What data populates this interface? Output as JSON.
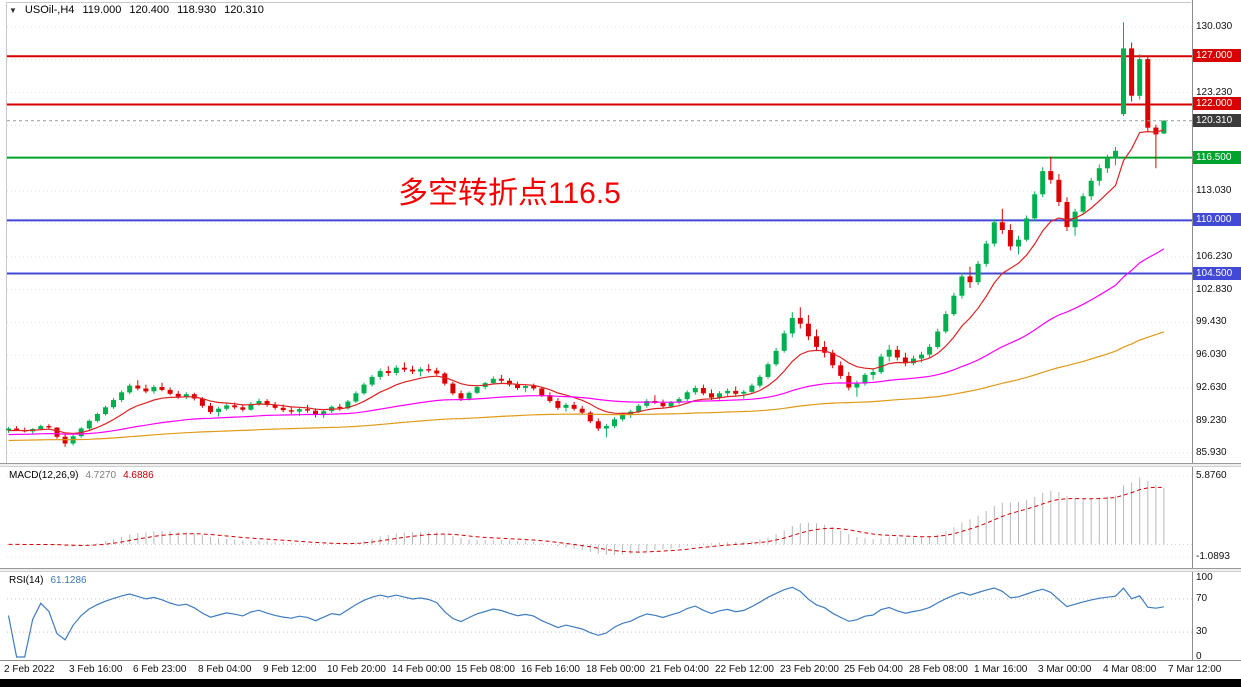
{
  "header": {
    "symbol": "USOil-,H4",
    "open": "119.000",
    "high": "120.400",
    "low": "118.930",
    "close": "120.310"
  },
  "icons": {
    "symbol_dropdown": "▼"
  },
  "annotation": {
    "text": "多空转折点116.5",
    "color": "#f40000"
  },
  "macd_header": {
    "label": "MACD(12,26,9)",
    "main_value": "4.7270",
    "signal_value": "4.6886"
  },
  "rsi_header": {
    "label": "RSI(14)",
    "value": "61.1286"
  },
  "chart_data": {
    "type": "candlestick",
    "symbol": "USOil-",
    "timeframe": "H4",
    "colors": {
      "up": "#00b050",
      "down": "#dd0000",
      "grid": "#e2e2e2",
      "rsi_line": "#3f7cbf",
      "macd_hist": "#b9b9b9",
      "macd_signal": "#d40000"
    },
    "price_axis": {
      "grid_prices": [
        130.03,
        126.63,
        123.23,
        119.83,
        116.43,
        113.03,
        109.63,
        106.23,
        102.83,
        99.43,
        96.03,
        92.63,
        89.23,
        85.93
      ],
      "label_decimals": 3
    },
    "levels": [
      {
        "price": 127.0,
        "label": "127.000",
        "color": "#d80000"
      },
      {
        "price": 122.0,
        "label": "122.000",
        "color": "#d80000"
      },
      {
        "price": 116.5,
        "label": "116.500",
        "color": "#00a32e"
      },
      {
        "price": 110.0,
        "label": "110.000",
        "color": "#4149d6"
      },
      {
        "price": 104.5,
        "label": "104.500",
        "color": "#4149d6"
      }
    ],
    "current_price": {
      "value": 120.31,
      "label": "120.310",
      "badge_bg": "#3b3b3b"
    },
    "ma_overlays": [
      {
        "period": 10,
        "color": "#dd2222",
        "seed": 88.2
      },
      {
        "period": 55,
        "color": "#ff00ff",
        "seed": 87.8
      },
      {
        "period": 150,
        "color": "#e09a18",
        "seed": 87.2
      }
    ],
    "candles": [
      [
        88.25,
        88.6,
        88.0,
        88.45
      ],
      [
        88.45,
        88.7,
        88.2,
        88.3
      ],
      [
        88.3,
        88.55,
        88.05,
        88.15
      ],
      [
        88.15,
        88.5,
        87.95,
        88.4
      ],
      [
        88.4,
        88.85,
        88.25,
        88.7
      ],
      [
        88.7,
        88.9,
        88.4,
        88.55
      ],
      [
        88.55,
        88.6,
        87.4,
        87.6
      ],
      [
        87.6,
        87.9,
        86.55,
        86.9
      ],
      [
        86.9,
        87.8,
        86.7,
        87.65
      ],
      [
        87.65,
        88.6,
        87.5,
        88.45
      ],
      [
        88.45,
        89.4,
        88.3,
        89.25
      ],
      [
        89.25,
        90.1,
        89.1,
        89.95
      ],
      [
        89.95,
        90.8,
        89.8,
        90.65
      ],
      [
        90.65,
        91.6,
        90.5,
        91.4
      ],
      [
        91.4,
        92.4,
        91.2,
        92.2
      ],
      [
        92.2,
        93.1,
        92.0,
        92.9
      ],
      [
        92.9,
        93.45,
        92.4,
        92.6
      ],
      [
        92.6,
        93.0,
        92.1,
        92.3
      ],
      [
        92.3,
        92.95,
        92.05,
        92.75
      ],
      [
        92.75,
        93.2,
        92.3,
        92.45
      ],
      [
        92.45,
        92.7,
        91.9,
        92.05
      ],
      [
        92.05,
        92.35,
        91.55,
        91.75
      ],
      [
        91.75,
        92.2,
        91.5,
        92.0
      ],
      [
        92.0,
        92.15,
        91.35,
        91.55
      ],
      [
        91.55,
        91.7,
        90.6,
        90.8
      ],
      [
        90.8,
        91.1,
        89.95,
        90.15
      ],
      [
        90.15,
        90.7,
        89.7,
        90.5
      ],
      [
        90.5,
        91.05,
        90.3,
        90.85
      ],
      [
        90.85,
        91.15,
        90.45,
        90.65
      ],
      [
        90.65,
        90.95,
        90.2,
        90.4
      ],
      [
        90.4,
        91.2,
        90.3,
        91.0
      ],
      [
        91.0,
        91.55,
        90.8,
        91.3
      ],
      [
        91.3,
        91.5,
        90.7,
        90.9
      ],
      [
        90.9,
        91.2,
        90.4,
        90.6
      ],
      [
        90.6,
        90.95,
        90.15,
        90.35
      ],
      [
        90.35,
        90.7,
        89.95,
        90.2
      ],
      [
        90.2,
        90.6,
        89.75,
        90.45
      ],
      [
        90.45,
        90.9,
        90.1,
        90.3
      ],
      [
        90.3,
        90.55,
        89.6,
        89.85
      ],
      [
        89.85,
        90.4,
        89.55,
        90.25
      ],
      [
        90.25,
        90.85,
        90.05,
        90.7
      ],
      [
        90.7,
        91.0,
        90.3,
        90.55
      ],
      [
        90.55,
        91.4,
        90.4,
        91.25
      ],
      [
        91.25,
        92.3,
        91.1,
        92.1
      ],
      [
        92.1,
        93.2,
        91.95,
        93.0
      ],
      [
        93.0,
        94.0,
        92.8,
        93.8
      ],
      [
        93.8,
        94.65,
        93.5,
        94.4
      ],
      [
        94.4,
        94.9,
        93.9,
        94.2
      ],
      [
        94.2,
        95.0,
        93.95,
        94.75
      ],
      [
        94.75,
        95.3,
        94.3,
        94.55
      ],
      [
        94.55,
        94.95,
        94.1,
        94.35
      ],
      [
        94.35,
        94.8,
        93.85,
        94.6
      ],
      [
        94.6,
        95.1,
        94.25,
        94.45
      ],
      [
        94.45,
        94.75,
        93.95,
        94.15
      ],
      [
        94.15,
        94.3,
        92.9,
        93.1
      ],
      [
        93.1,
        93.3,
        91.9,
        92.1
      ],
      [
        92.1,
        92.4,
        91.3,
        91.55
      ],
      [
        91.55,
        92.3,
        91.35,
        92.15
      ],
      [
        92.15,
        92.9,
        92.0,
        92.75
      ],
      [
        92.75,
        93.3,
        92.5,
        93.15
      ],
      [
        93.15,
        93.85,
        93.0,
        93.6
      ],
      [
        93.6,
        94.0,
        93.2,
        93.4
      ],
      [
        93.4,
        93.65,
        92.8,
        93.0
      ],
      [
        93.0,
        93.3,
        92.45,
        92.65
      ],
      [
        92.65,
        93.0,
        92.2,
        92.85
      ],
      [
        92.85,
        93.1,
        92.4,
        92.6
      ],
      [
        92.6,
        92.75,
        91.7,
        91.9
      ],
      [
        91.9,
        92.2,
        91.1,
        91.3
      ],
      [
        91.3,
        91.6,
        90.4,
        90.6
      ],
      [
        90.6,
        91.1,
        90.2,
        90.9
      ],
      [
        90.9,
        91.2,
        90.3,
        90.5
      ],
      [
        90.5,
        90.8,
        89.9,
        90.1
      ],
      [
        90.1,
        90.25,
        89.0,
        89.2
      ],
      [
        89.2,
        89.5,
        88.2,
        88.45
      ],
      [
        88.45,
        88.9,
        87.55,
        88.7
      ],
      [
        88.7,
        89.6,
        88.5,
        89.4
      ],
      [
        89.4,
        90.1,
        89.2,
        89.9
      ],
      [
        89.9,
        90.4,
        89.55,
        90.2
      ],
      [
        90.2,
        91.0,
        90.05,
        90.8
      ],
      [
        90.8,
        91.5,
        90.6,
        91.3
      ],
      [
        91.3,
        91.9,
        91.0,
        91.1
      ],
      [
        91.1,
        91.45,
        90.55,
        90.75
      ],
      [
        90.75,
        91.3,
        90.6,
        91.15
      ],
      [
        91.15,
        91.7,
        90.95,
        91.5
      ],
      [
        91.5,
        92.4,
        91.3,
        92.2
      ],
      [
        92.2,
        92.9,
        91.95,
        92.65
      ],
      [
        92.65,
        93.0,
        91.9,
        92.1
      ],
      [
        92.1,
        92.5,
        91.4,
        91.65
      ],
      [
        91.65,
        92.3,
        91.45,
        92.1
      ],
      [
        92.1,
        92.6,
        91.8,
        92.35
      ],
      [
        92.35,
        92.8,
        91.85,
        92.05
      ],
      [
        92.05,
        92.45,
        91.55,
        92.25
      ],
      [
        92.25,
        93.1,
        92.1,
        92.9
      ],
      [
        92.9,
        94.0,
        92.7,
        93.8
      ],
      [
        93.8,
        95.3,
        93.6,
        95.1
      ],
      [
        95.1,
        96.8,
        94.9,
        96.5
      ],
      [
        96.5,
        98.6,
        96.3,
        98.3
      ],
      [
        98.3,
        100.5,
        97.9,
        99.9
      ],
      [
        99.9,
        101.0,
        98.8,
        99.3
      ],
      [
        99.3,
        100.2,
        97.6,
        98.0
      ],
      [
        98.0,
        98.7,
        96.5,
        96.9
      ],
      [
        96.9,
        97.5,
        95.8,
        96.3
      ],
      [
        96.3,
        96.6,
        94.7,
        95.0
      ],
      [
        95.0,
        95.4,
        93.6,
        93.9
      ],
      [
        93.9,
        94.3,
        92.4,
        92.7
      ],
      [
        92.7,
        93.4,
        91.75,
        93.1
      ],
      [
        93.1,
        94.2,
        92.9,
        94.0
      ],
      [
        94.0,
        94.6,
        93.5,
        94.3
      ],
      [
        94.3,
        96.2,
        94.1,
        95.9
      ],
      [
        95.9,
        97.1,
        95.4,
        96.6
      ],
      [
        96.6,
        97.0,
        95.5,
        95.8
      ],
      [
        95.8,
        96.3,
        94.9,
        95.2
      ],
      [
        95.2,
        96.0,
        95.0,
        95.7
      ],
      [
        95.7,
        96.4,
        95.3,
        96.1
      ],
      [
        96.1,
        97.2,
        95.8,
        96.9
      ],
      [
        96.9,
        98.8,
        96.7,
        98.5
      ],
      [
        98.5,
        100.6,
        98.3,
        100.3
      ],
      [
        100.3,
        102.5,
        100.1,
        102.2
      ],
      [
        102.2,
        104.6,
        101.9,
        104.2
      ],
      [
        104.2,
        105.2,
        103.0,
        103.6
      ],
      [
        103.6,
        105.8,
        103.3,
        105.5
      ],
      [
        105.5,
        107.9,
        105.2,
        107.6
      ],
      [
        107.6,
        110.1,
        107.3,
        109.8
      ],
      [
        109.8,
        111.2,
        108.6,
        109.0
      ],
      [
        109.0,
        109.6,
        106.9,
        107.3
      ],
      [
        107.3,
        108.4,
        106.5,
        108.0
      ],
      [
        108.0,
        110.5,
        107.8,
        110.2
      ],
      [
        110.2,
        113.0,
        109.9,
        112.7
      ],
      [
        112.7,
        115.5,
        112.4,
        115.1
      ],
      [
        115.1,
        116.6,
        113.8,
        114.2
      ],
      [
        114.2,
        114.8,
        111.5,
        111.9
      ],
      [
        111.9,
        112.4,
        108.9,
        109.3
      ],
      [
        109.3,
        111.2,
        108.4,
        110.9
      ],
      [
        110.9,
        112.8,
        110.6,
        112.5
      ],
      [
        112.5,
        114.4,
        112.1,
        114.1
      ],
      [
        114.1,
        115.8,
        113.6,
        115.4
      ],
      [
        115.4,
        116.8,
        114.9,
        116.4
      ],
      [
        116.4,
        117.6,
        115.7,
        117.2
      ],
      [
        121.0,
        130.5,
        120.8,
        127.8
      ],
      [
        127.8,
        128.4,
        122.3,
        122.9
      ],
      [
        122.9,
        127.2,
        122.5,
        126.7
      ],
      [
        126.7,
        127.0,
        119.2,
        119.6
      ],
      [
        119.6,
        119.9,
        115.4,
        118.9
      ],
      [
        119.0,
        120.4,
        118.93,
        120.31
      ]
    ],
    "macd": {
      "params": [
        12,
        26,
        9
      ],
      "axis": [
        {
          "text": "5.8760",
          "value": 5.876
        },
        {
          "text": "-1.0893",
          "value": -1.0893
        }
      ]
    },
    "rsi": {
      "period": 14,
      "levels": [
        70,
        30
      ],
      "axis": [
        {
          "text": "100",
          "value": 100
        },
        {
          "text": "70",
          "value": 70
        },
        {
          "text": "30",
          "value": 30
        },
        {
          "text": "0",
          "value": 0
        }
      ]
    },
    "time_labels": [
      "2 Feb 2022",
      "3 Feb 16:00",
      "6 Feb 23:00",
      "8 Feb 04:00",
      "9 Feb 12:00",
      "10 Feb 20:00",
      "14 Feb 00:00",
      "15 Feb 08:00",
      "16 Feb 16:00",
      "18 Feb 00:00",
      "21 Feb 04:00",
      "22 Feb 12:00",
      "23 Feb 20:00",
      "25 Feb 04:00",
      "28 Feb 08:00",
      "1 Mar 16:00",
      "3 Mar 00:00",
      "4 Mar 08:00",
      "7 Mar 12:00"
    ]
  }
}
